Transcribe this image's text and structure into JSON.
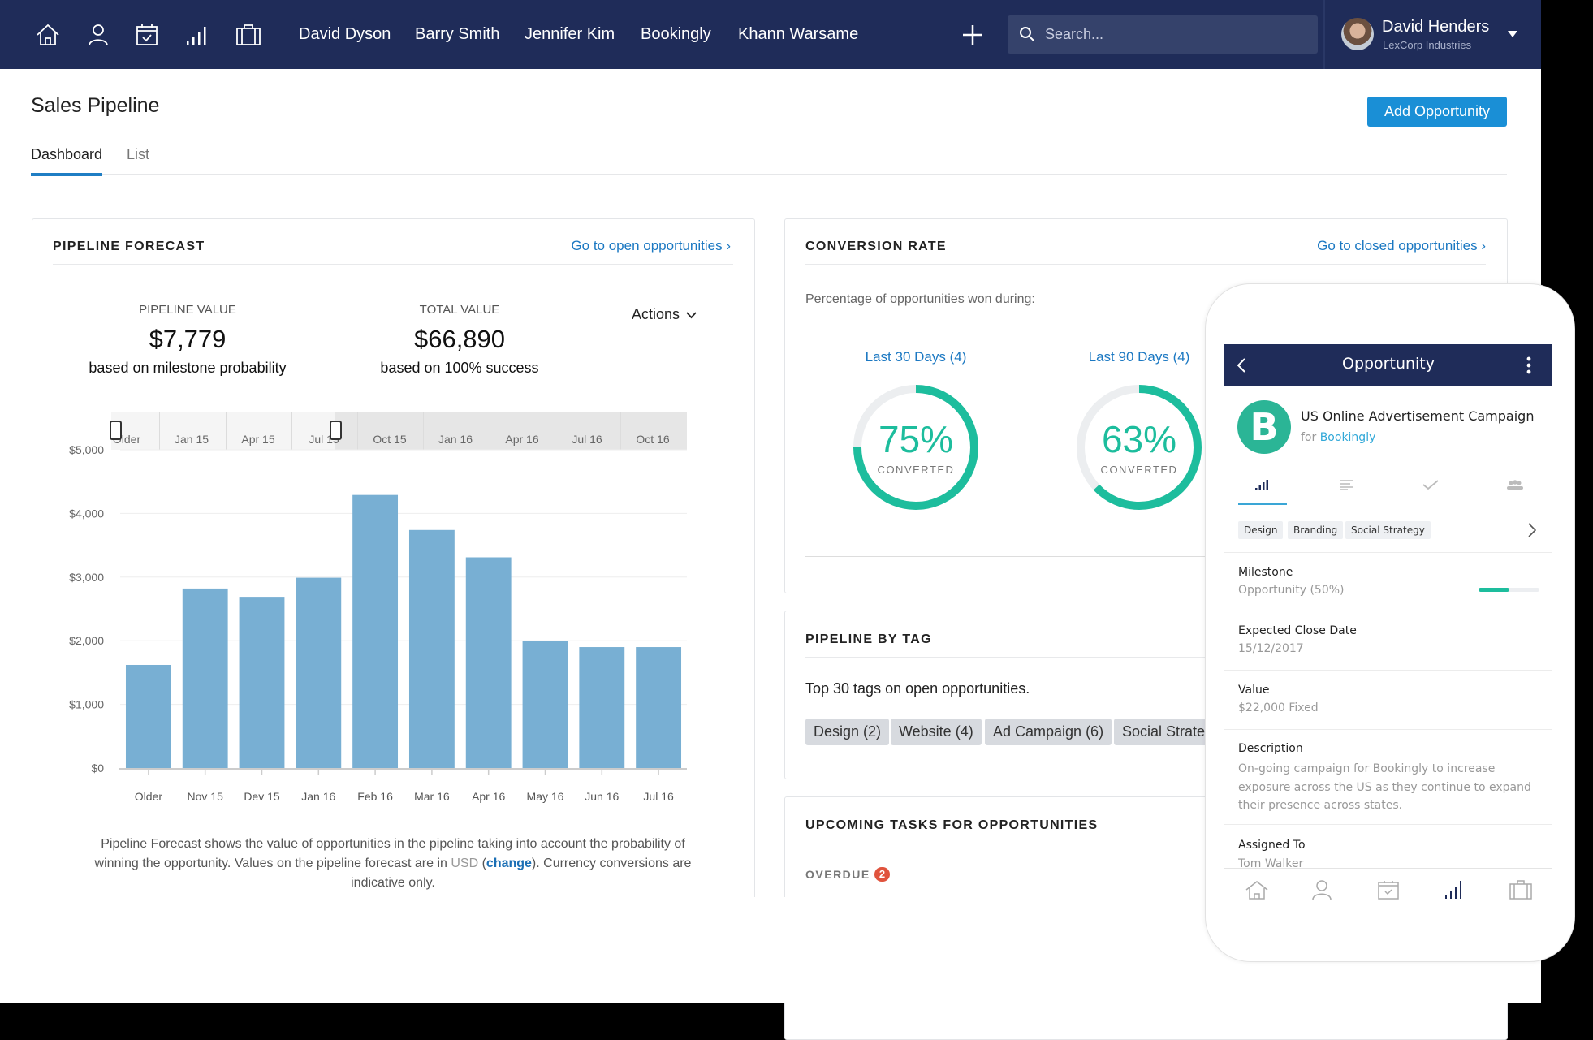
{
  "nav": {
    "icons": [
      "home-icon",
      "user-icon",
      "calendar-icon",
      "bar-chart-icon",
      "briefcase-icon"
    ],
    "recent": [
      "David Dyson",
      "Barry Smith",
      "Jennifer Kim",
      "Bookingly",
      "Khann Warsame"
    ],
    "search_placeholder": "Search...",
    "user_name": "David Henders",
    "user_company": "LexCorp Industries",
    "color": "#1f2c59"
  },
  "page": {
    "title": "Sales Pipeline",
    "add_button": "Add Opportunity",
    "tabs": [
      "Dashboard",
      "List"
    ],
    "active_tab": "Dashboard",
    "accent": "#1a8fd6"
  },
  "forecast": {
    "title": "PIPELINE FORECAST",
    "link": "Go to open opportunities ›",
    "pipeline_label": "PIPELINE VALUE",
    "pipeline_value": "$7,779",
    "pipeline_sub": "based on milestone probability",
    "total_label": "TOTAL VALUE",
    "total_value": "$66,890",
    "total_sub": "based on 100% success",
    "actions": "Actions",
    "navigator_labels": [
      "Older",
      "Jan 15",
      "Apr 15",
      "Jul 15",
      "Oct 15",
      "Jan 16",
      "Apr 16",
      "Jul 16",
      "Oct 16"
    ],
    "desc_1": "Pipeline Forecast shows the value of opportunities in the pipeline taking into account the probability of",
    "desc_2a": "winning the opportunity. Values on the pipeline forecast are in ",
    "desc_usd": "USD",
    "desc_open": " (",
    "desc_change": "change",
    "desc_2b": "). Currency conversions are",
    "desc_3": "indicative only."
  },
  "chart_data": {
    "type": "bar",
    "categories": [
      "Older",
      "Nov 15",
      "Dev 15",
      "Jan 16",
      "Feb 16",
      "Mar 16",
      "Apr 16",
      "May 16",
      "Jun 16",
      "Jul 16"
    ],
    "values": [
      1620,
      2820,
      2690,
      2990,
      4290,
      3740,
      3310,
      1990,
      1900,
      1900
    ],
    "yticks": [
      "$0",
      "$1,000",
      "$2,000",
      "$3,000",
      "$4,000",
      "$5,000"
    ],
    "ylim": [
      0,
      5000
    ],
    "grid": true,
    "color": "#78afd3"
  },
  "conversion": {
    "title": "CONVERSION RATE",
    "link": "Go to closed opportunities ›",
    "subtitle": "Percentage of opportunities won during:",
    "rates": [
      {
        "label": "Last 30 Days (4)",
        "percent": 75,
        "text": "75%",
        "caption": "CONVERTED"
      },
      {
        "label": "Last 90 Days (4)",
        "percent": 63,
        "text": "63%",
        "caption": "CONVERTED"
      }
    ],
    "color": "#1dbd9d"
  },
  "tags": {
    "title": "PIPELINE BY TAG",
    "subtitle": "Top 30 tags on open opportunities.",
    "items": [
      "Design (2)",
      "Website (4)",
      "Ad Campaign (6)",
      "Social Strate"
    ]
  },
  "tasks": {
    "title": "UPCOMING TASKS FOR OPPORTUNITIES",
    "overdue": "OVERDUE",
    "overdue_count": "2"
  },
  "phone": {
    "header": "Opportunity",
    "avatar_letter": "B",
    "title": "US Online Advertisement Campaign",
    "for": "for ",
    "company": "Bookingly",
    "tab_icons": [
      "bar-chart-icon",
      "notes-icon",
      "check-icon",
      "people-icon"
    ],
    "tags": [
      "Design",
      "Branding",
      "Social Strategy"
    ],
    "milestone_label": "Milestone",
    "milestone_value": "Opportunity (50%)",
    "milestone_progress": 0.5,
    "close_label": "Expected Close Date",
    "close_value": "15/12/2017",
    "value_label": "Value",
    "value_value": "$22,000 Fixed",
    "desc_label": "Description",
    "desc_1": "On-going campaign for Bookingly to increase",
    "desc_2": "exposure across the US as they continue to expand",
    "desc_3": "their presence across states.",
    "assigned_label": "Assigned To",
    "assigned_value": "Tom Walker",
    "bottom_icons": [
      "home-icon",
      "user-icon",
      "calendar-icon",
      "bar-chart-icon",
      "briefcase-icon"
    ]
  }
}
